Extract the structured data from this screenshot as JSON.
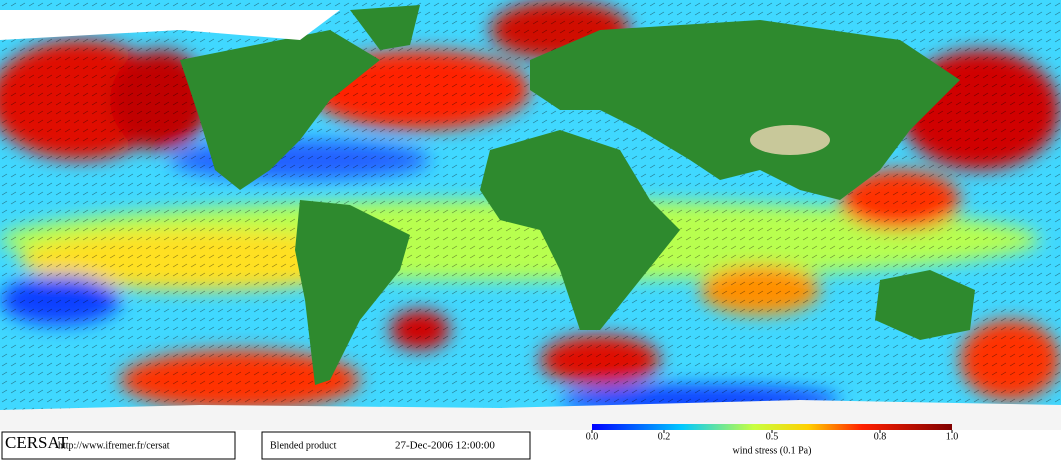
{
  "footer": {
    "logo": "CERSAT",
    "url": "http://www.ifremer.fr/cersat",
    "product": "Blended product",
    "date": "27-Dec-2006 12:00:00"
  },
  "colorbar": {
    "label": "wind stress (0.1 Pa)",
    "range": [
      0,
      1
    ],
    "ticks": [
      {
        "value": 0,
        "label": "0.0"
      },
      0.2,
      0.5,
      0.8,
      {
        "value": 1,
        "label": "1.0"
      }
    ]
  }
}
